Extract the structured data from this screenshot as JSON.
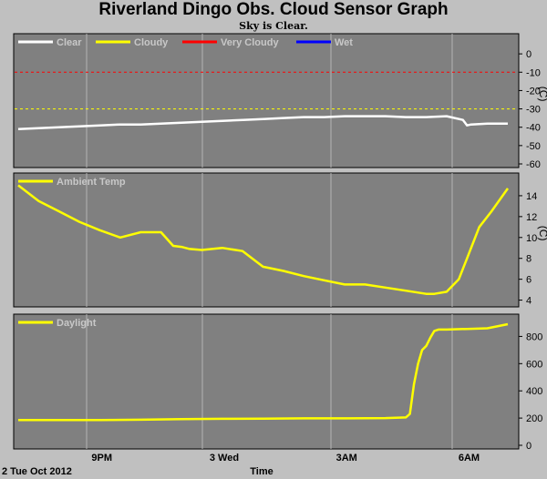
{
  "page": {
    "title": "Riverland Dingo Obs. Cloud Sensor Graph",
    "status": "Sky is Clear.",
    "date_label": "2 Tue Oct 2012",
    "time_label": "Time"
  },
  "colors": {
    "background": "#c0c0c0",
    "panel": "#808080",
    "grid": "#b4b4b4",
    "clear": "#ffffff",
    "cloudy": "#ffff00",
    "very_cloudy": "#ff0000",
    "wet": "#0000ff"
  },
  "chart_data": [
    {
      "type": "line",
      "name": "sky-temperature",
      "unit_label": "(C)",
      "ylim": [
        -60,
        10
      ],
      "yticks": [
        0,
        -10,
        -20,
        -30,
        -40,
        -50,
        -60
      ],
      "thresholds": [
        {
          "value": -10,
          "color": "#ff0000"
        },
        {
          "value": -30,
          "color": "#ffff00"
        }
      ],
      "legend": [
        {
          "label": "Clear",
          "color": "#ffffff"
        },
        {
          "label": "Cloudy",
          "color": "#ffff00"
        },
        {
          "label": "Very Cloudy",
          "color": "#ff0000"
        },
        {
          "label": "Wet",
          "color": "#0000ff"
        }
      ],
      "series": [
        {
          "color": "#ffffff",
          "x": [
            0,
            0.5,
            1,
            1.5,
            2,
            2.5,
            3,
            3.5,
            4,
            4.5,
            5,
            5.5,
            6,
            6.5,
            7,
            7.5,
            8,
            8.5,
            9,
            9.5,
            10,
            10.5,
            10.9,
            11,
            11.1,
            11.5,
            12
          ],
          "y": [
            -41,
            -40.5,
            -40,
            -39.5,
            -39,
            -38.5,
            -38.5,
            -38,
            -37.5,
            -37,
            -36.5,
            -36,
            -35.5,
            -35,
            -34.5,
            -34.5,
            -34,
            -34,
            -34,
            -34.5,
            -34.5,
            -34,
            -36,
            -39,
            -38.5,
            -38,
            -38
          ]
        }
      ]
    },
    {
      "type": "line",
      "name": "ambient-temperature",
      "unit_label": "(C)",
      "ylim": [
        3.7,
        16
      ],
      "yticks": [
        14,
        12,
        10,
        8,
        6,
        4
      ],
      "legend": [
        {
          "label": "Ambient Temp",
          "color": "#ffff00"
        }
      ],
      "series": [
        {
          "color": "#ffff00",
          "x": [
            0,
            0.5,
            1,
            1.5,
            2,
            2.5,
            3,
            3.5,
            3.8,
            4,
            4.2,
            4.5,
            5,
            5.5,
            6,
            6.5,
            7,
            7.5,
            8,
            8.5,
            9,
            9.5,
            10,
            10.2,
            10.5,
            10.8,
            11,
            11.3,
            11.6,
            12
          ],
          "y": [
            15,
            13.5,
            12.5,
            11.5,
            10.7,
            10,
            10.5,
            10.5,
            9.2,
            9.1,
            8.9,
            8.8,
            9,
            8.7,
            7.2,
            6.8,
            6.3,
            5.9,
            5.5,
            5.5,
            5.2,
            4.9,
            4.6,
            4.6,
            4.8,
            6,
            8,
            11,
            12.5,
            14.7
          ]
        }
      ]
    },
    {
      "type": "line",
      "name": "daylight",
      "ylim": [
        0,
        950
      ],
      "yticks": [
        800,
        600,
        400,
        200,
        0
      ],
      "legend": [
        {
          "label": "Daylight",
          "color": "#ffff00"
        }
      ],
      "series": [
        {
          "color": "#ffff00",
          "x": [
            0,
            1,
            2,
            3,
            4,
            5,
            6,
            7,
            8,
            9,
            9.5,
            9.6,
            9.7,
            9.8,
            9.9,
            10,
            10.1,
            10.2,
            10.3,
            10.5,
            11,
            11.5,
            12
          ],
          "y": [
            185,
            186,
            186,
            188,
            192,
            195,
            196,
            198,
            198,
            200,
            205,
            230,
            450,
            600,
            700,
            730,
            790,
            840,
            850,
            850,
            855,
            860,
            890
          ]
        }
      ]
    }
  ],
  "x_axis": {
    "ticks": [
      {
        "label": "9PM",
        "x": 2.05
      },
      {
        "label": "3 Wed",
        "x": 5.05
      },
      {
        "label": "3AM",
        "x": 8.05
      },
      {
        "label": "6AM",
        "x": 11.05
      }
    ]
  }
}
